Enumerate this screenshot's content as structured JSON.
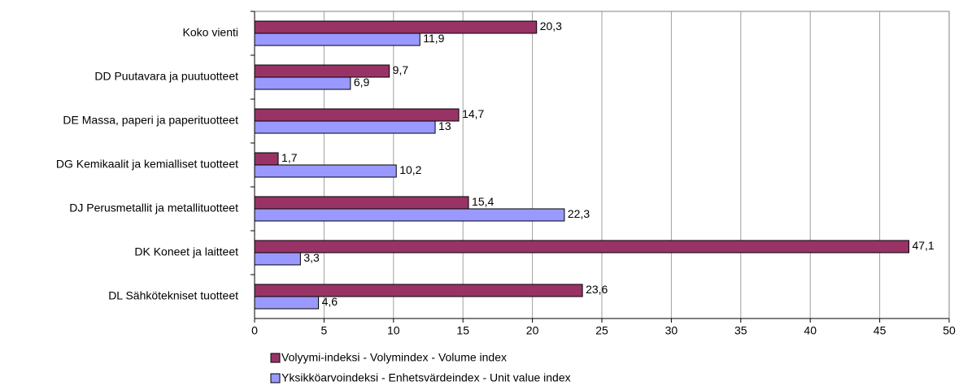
{
  "chart_data": {
    "type": "bar",
    "orientation": "horizontal",
    "categories": [
      "Koko vienti",
      "DD Puutavara ja puutuotteet",
      "DE Massa, paperi ja paperituotteet",
      "DG Kemikaalit ja kemialliset tuotteet",
      "DJ Perusmetallit ja metallituotteet",
      "DK Koneet ja laitteet",
      "DL Sähkötekniset tuotteet"
    ],
    "series": [
      {
        "name": "Volyymi-indeksi - Volymindex - Volume index",
        "color": "#993366",
        "values": [
          20.3,
          9.7,
          14.7,
          1.7,
          15.4,
          47.1,
          23.6
        ],
        "value_labels": [
          "20,3",
          "9,7",
          "14,7",
          "1,7",
          "15,4",
          "47,1",
          "23,6"
        ]
      },
      {
        "name": "Yksikköarvoindeksi - Enhetsvärdeindex - Unit value index",
        "color": "#9999ff",
        "values": [
          11.9,
          6.9,
          13,
          10.2,
          22.3,
          3.3,
          4.6
        ],
        "value_labels": [
          "11,9",
          "6,9",
          "13",
          "10,2",
          "22,3",
          "3,3",
          "4,6"
        ]
      }
    ],
    "xlim": [
      0,
      50
    ],
    "xticks": [
      0,
      5,
      10,
      15,
      20,
      25,
      30,
      35,
      40,
      45,
      50
    ],
    "grid": true,
    "legend": "bottom"
  }
}
